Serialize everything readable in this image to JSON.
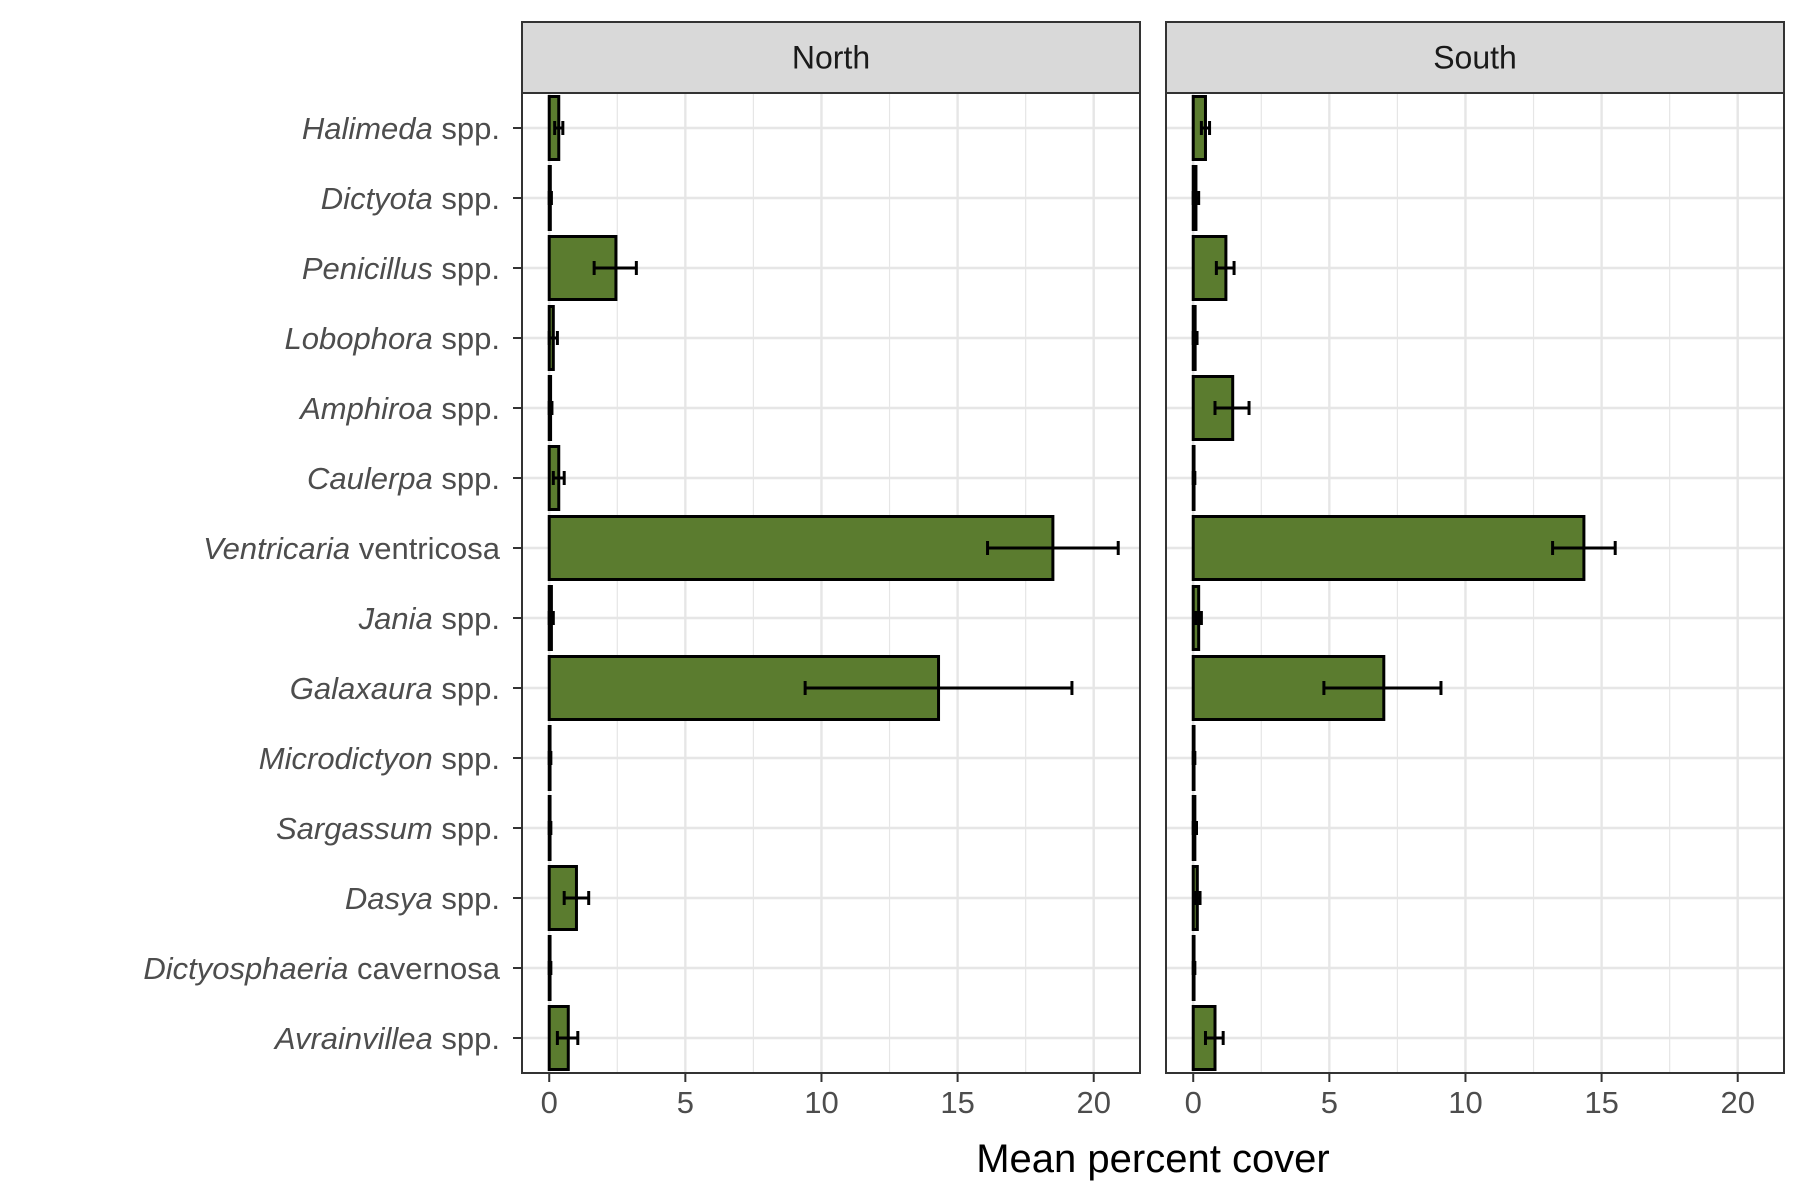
{
  "chart_data": {
    "type": "bar",
    "orientation": "horizontal",
    "xlabel": "Mean percent cover",
    "ylabel": "",
    "xlim": [
      -1,
      21.7
    ],
    "x_ticks": [
      0,
      5,
      10,
      15,
      20
    ],
    "grid": true,
    "colors": {
      "bar_fill": "#5b7c2f",
      "bar_outline": "#000000",
      "grid": "#e6e6e6",
      "strip_bg": "#d9d9d9",
      "panel_border": "#333333"
    },
    "categories": [
      {
        "italic": "Halimeda",
        "rest": " spp."
      },
      {
        "italic": "Dictyota",
        "rest": " spp."
      },
      {
        "italic": "Penicillus",
        "rest": " spp."
      },
      {
        "italic": "Lobophora",
        "rest": " spp."
      },
      {
        "italic": "Amphiroa",
        "rest": " spp."
      },
      {
        "italic": "Caulerpa",
        "rest": " spp."
      },
      {
        "italic": "Ventricaria",
        "rest": " ventricosa"
      },
      {
        "italic": "Jania",
        "rest": " spp."
      },
      {
        "italic": "Galaxaura",
        "rest": " spp."
      },
      {
        "italic": "Microdictyon",
        "rest": " spp."
      },
      {
        "italic": "Sargassum",
        "rest": " spp."
      },
      {
        "italic": "Dasya",
        "rest": " spp."
      },
      {
        "italic": "Dictyosphaeria",
        "rest": " cavernosa"
      },
      {
        "italic": "Avrainvillea",
        "rest": " spp."
      }
    ],
    "panels": [
      {
        "name": "North",
        "values": [
          0.35,
          0.04,
          2.45,
          0.15,
          0.05,
          0.35,
          18.5,
          0.08,
          14.3,
          0.03,
          0.03,
          1.0,
          0.03,
          0.7
        ],
        "err_low": [
          0.2,
          0.0,
          1.65,
          0.0,
          0.0,
          0.15,
          16.1,
          0.0,
          9.4,
          0.0,
          0.0,
          0.55,
          0.0,
          0.3
        ],
        "err_high": [
          0.5,
          0.08,
          3.2,
          0.3,
          0.1,
          0.55,
          20.9,
          0.15,
          19.2,
          0.06,
          0.06,
          1.45,
          0.06,
          1.05
        ]
      },
      {
        "name": "South",
        "values": [
          0.45,
          0.1,
          1.2,
          0.07,
          1.45,
          0.03,
          14.35,
          0.2,
          7.0,
          0.03,
          0.06,
          0.15,
          0.03,
          0.8
        ],
        "err_low": [
          0.3,
          0.0,
          0.85,
          0.0,
          0.8,
          0.0,
          13.2,
          0.1,
          4.8,
          0.0,
          0.0,
          0.05,
          0.0,
          0.45
        ],
        "err_high": [
          0.6,
          0.2,
          1.5,
          0.14,
          2.05,
          0.06,
          15.5,
          0.3,
          9.1,
          0.06,
          0.12,
          0.25,
          0.06,
          1.1
        ]
      }
    ]
  }
}
